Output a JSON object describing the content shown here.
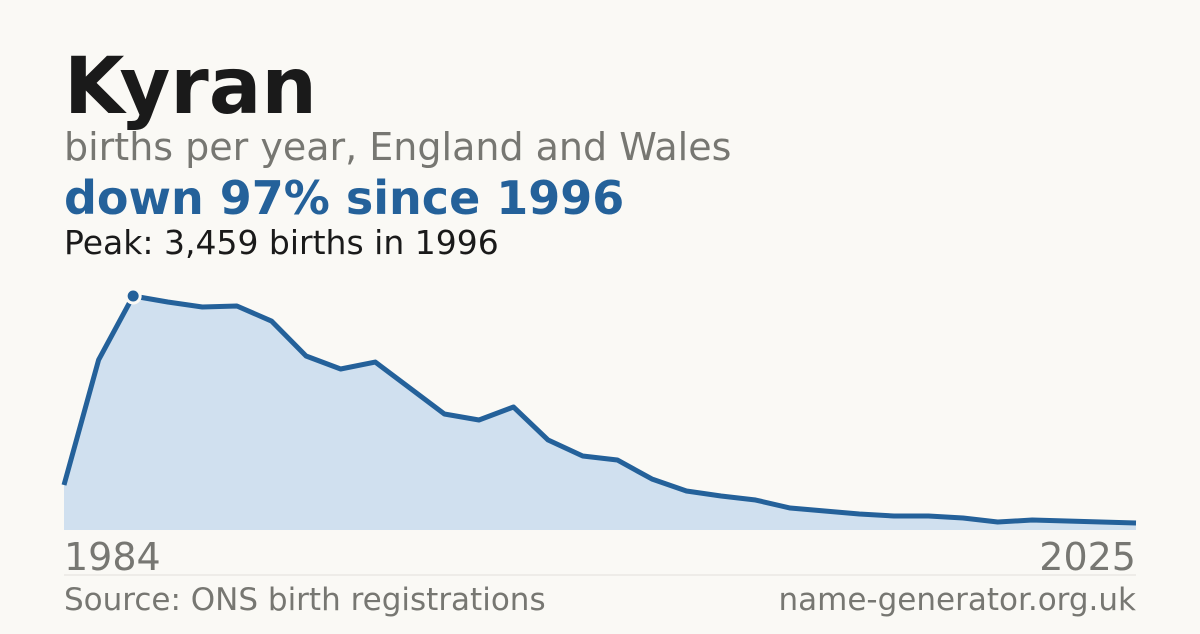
{
  "chart_data": {
    "type": "area",
    "title": "Kyran",
    "subtitle": "births per year, England and Wales",
    "headline": "down 97% since 1996",
    "peak_note": "Peak: 3,459 births in 1996",
    "source": "Source: ONS birth registrations",
    "site": "name-generator.org.uk",
    "categories": [
      "1984",
      null,
      null,
      null,
      null,
      null,
      null,
      null,
      null,
      null,
      null,
      null,
      null,
      null,
      null,
      null,
      null,
      null,
      null,
      null,
      null,
      null,
      null,
      null,
      null,
      null,
      null,
      null,
      null,
      null,
      null,
      "2025"
    ],
    "values": [
      665,
      2513,
      3459,
      3370,
      3296,
      3311,
      3089,
      2572,
      2380,
      2483,
      2099,
      1715,
      1626,
      1818,
      1330,
      1094,
      1035,
      754,
      576,
      503,
      443,
      325,
      281,
      236,
      207,
      207,
      177,
      118,
      148,
      133,
      118,
      104
    ],
    "peak_index": 2,
    "ylim": [
      0,
      3459
    ],
    "color": "#24619a",
    "fill_color": "#d0e0ef"
  }
}
